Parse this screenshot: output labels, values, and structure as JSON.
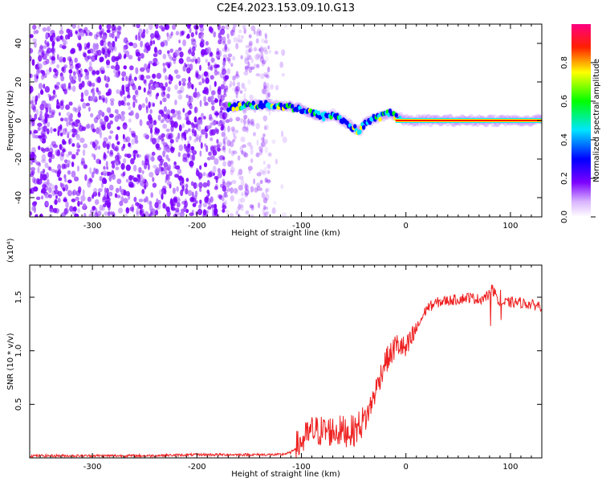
{
  "figure": {
    "title": "C2E4.2023.153.09.10.G13"
  },
  "chart_data": [
    {
      "type": "heatmap",
      "title": "C2E4.2023.153.09.10.G13",
      "xlabel": "Height of straight line (km)",
      "ylabel": "Frequency (Hz)",
      "xlim": [
        -360,
        130
      ],
      "ylim": [
        -50,
        50
      ],
      "xticks": [
        -300,
        -200,
        -100,
        0,
        100
      ],
      "yticks": [
        -40,
        -20,
        0,
        20,
        40
      ],
      "grid": false,
      "colorbar": {
        "label": "Normalized spectral amplitude",
        "range": [
          0,
          1
        ],
        "ticks": [
          "0.0",
          "0.2",
          "0.4",
          "0.6",
          "0.8"
        ],
        "colormap": [
          "#ffffff",
          "#7b00ff",
          "#0000ff",
          "#00e5ff",
          "#00ff00",
          "#ffff00",
          "#ff0000",
          "#ff0080"
        ]
      },
      "trace": {
        "x": [
          -170,
          -150,
          -130,
          -110,
          -95,
          -80,
          -70,
          -60,
          -50,
          -45,
          -40,
          -35,
          -30,
          -25,
          -20,
          -15,
          -10,
          0,
          20,
          60,
          100,
          130
        ],
        "y": [
          7,
          8,
          8,
          7,
          5,
          2,
          3,
          0,
          -4,
          -6,
          -2,
          0,
          1,
          2,
          3,
          4,
          2,
          0,
          0,
          0,
          0,
          0
        ]
      }
    },
    {
      "type": "line",
      "title": "",
      "xlabel": "Height of straight line (km)",
      "ylabel": "SNR (10 * v/v)",
      "yscale_label": "(x10⁴)",
      "xlim": [
        -360,
        130
      ],
      "ylim": [
        0,
        1.8
      ],
      "xticks": [
        -300,
        -200,
        -100,
        0,
        100
      ],
      "yticks": [
        "0.5",
        "1.0",
        "1.5"
      ],
      "grid": false,
      "series": [
        {
          "color": "#ee2222",
          "x": [
            -360,
            -300,
            -250,
            -200,
            -170,
            -140,
            -120,
            -110,
            -100,
            -90,
            -80,
            -70,
            -60,
            -50,
            -45,
            -40,
            -35,
            -30,
            -25,
            -20,
            -15,
            -10,
            -5,
            0,
            5,
            10,
            15,
            20,
            30,
            40,
            50,
            60,
            70,
            80,
            85,
            90,
            100,
            110,
            120,
            130
          ],
          "y": [
            0.02,
            0.02,
            0.02,
            0.03,
            0.03,
            0.03,
            0.03,
            0.05,
            0.15,
            0.25,
            0.25,
            0.25,
            0.25,
            0.25,
            0.3,
            0.35,
            0.45,
            0.6,
            0.75,
            0.9,
            0.95,
            1.05,
            1.05,
            1.0,
            1.1,
            1.2,
            1.3,
            1.4,
            1.45,
            1.47,
            1.48,
            1.5,
            1.48,
            1.52,
            1.55,
            1.45,
            1.45,
            1.45,
            1.43,
            1.42
          ]
        }
      ]
    }
  ]
}
